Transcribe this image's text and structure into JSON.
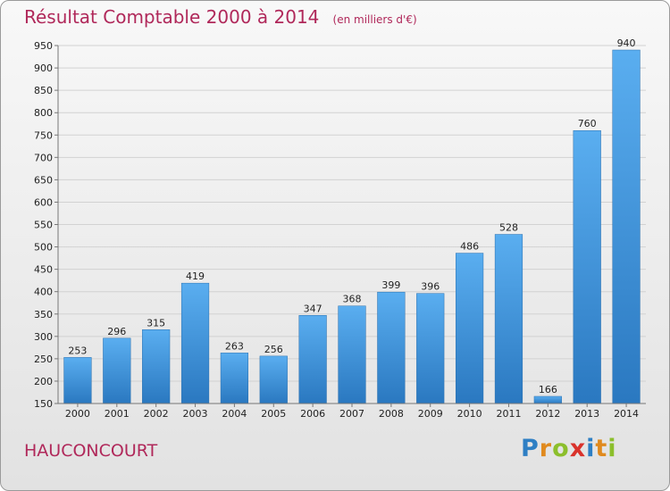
{
  "chart_data": {
    "type": "bar",
    "title": "Résultat Comptable 2000 à 2014",
    "subtitle": "(en milliers d'€)",
    "categories": [
      "2000",
      "2001",
      "2002",
      "2003",
      "2004",
      "2005",
      "2006",
      "2007",
      "2008",
      "2009",
      "2010",
      "2011",
      "2012",
      "2013",
      "2014"
    ],
    "values": [
      253,
      296,
      315,
      419,
      263,
      256,
      347,
      368,
      399,
      396,
      486,
      528,
      166,
      760,
      940
    ],
    "ylim": [
      150,
      950
    ],
    "yticks": [
      150,
      200,
      250,
      300,
      350,
      400,
      450,
      500,
      550,
      600,
      650,
      700,
      750,
      800,
      850,
      900,
      950
    ],
    "grid": true,
    "bar_color": "#3d93d8"
  },
  "commune": "HAUCONCOURT",
  "logo": {
    "text": "Proxiti",
    "letters": [
      {
        "ch": "P",
        "color": "#2e7fc4"
      },
      {
        "ch": "r",
        "color": "#e08a1e"
      },
      {
        "ch": "o",
        "color": "#8cbf2c"
      },
      {
        "ch": "x",
        "color": "#d9322b"
      },
      {
        "ch": "i",
        "color": "#2e7fc4"
      },
      {
        "ch": "t",
        "color": "#e08a1e"
      },
      {
        "ch": "i",
        "color": "#8cbf2c"
      }
    ]
  }
}
